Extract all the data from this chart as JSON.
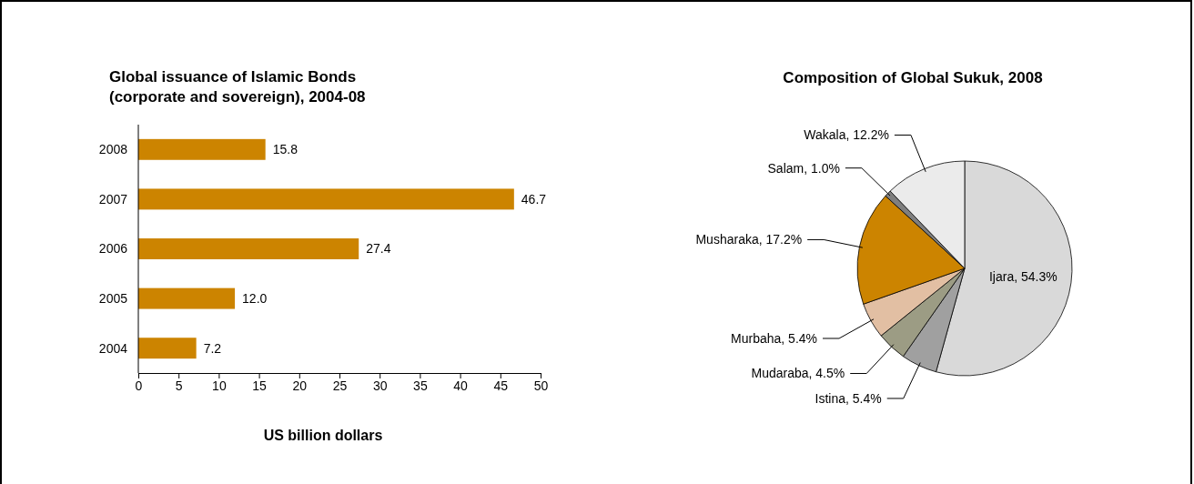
{
  "chart_data": [
    {
      "type": "bar",
      "orientation": "horizontal",
      "title": "Global issuance of Islamic Bonds\n(corporate and sovereign), 2004-08",
      "xlabel": "US billion dollars",
      "categories": [
        "2008",
        "2007",
        "2006",
        "2005",
        "2004"
      ],
      "values": [
        15.8,
        46.7,
        27.4,
        12.0,
        7.2
      ],
      "value_labels": [
        "15.8",
        "46.7",
        "27.4",
        "12.0",
        "7.2"
      ],
      "color": "#cc8400",
      "xlim": [
        0,
        50
      ],
      "xticks": [
        0,
        5,
        10,
        15,
        20,
        25,
        30,
        35,
        40,
        45,
        50
      ],
      "grid": false
    },
    {
      "type": "pie",
      "title": "Composition of Global Sukuk, 2008",
      "categories": [
        "Ijara",
        "Istina",
        "Mudaraba",
        "Murbaha",
        "Musharaka",
        "Salam",
        "Wakala"
      ],
      "values": [
        54.3,
        5.4,
        4.5,
        5.4,
        17.2,
        1.0,
        12.2
      ],
      "value_labels": [
        "54.3%",
        "5.4%",
        "4.5%",
        "5.4%",
        "17.2%",
        "1.0%",
        "12.2%"
      ],
      "colors": [
        "#d9d9d9",
        "#a0a0a0",
        "#9c9c84",
        "#e2bfa3",
        "#cc8400",
        "#7f7f7f",
        "#ebebeb"
      ]
    }
  ]
}
